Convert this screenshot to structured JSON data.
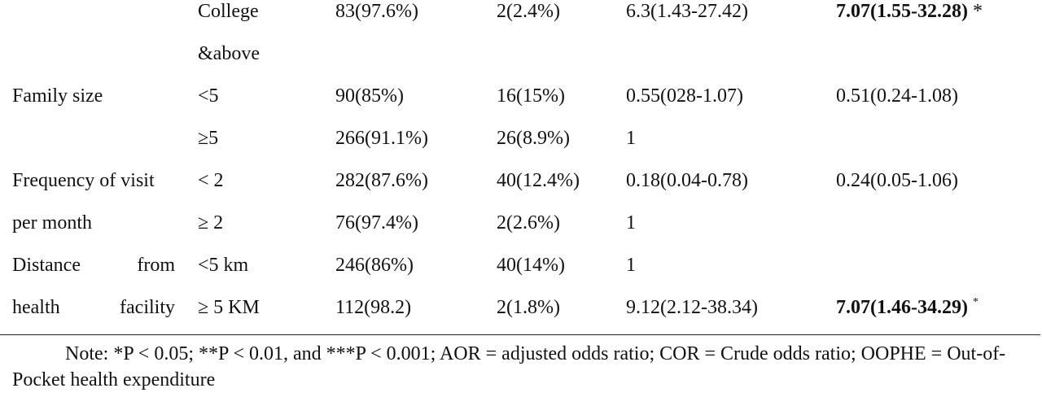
{
  "table": {
    "groups": [
      {
        "levels": [
          {
            "level": "College &above",
            "yes": "83(97.6%)",
            "no": "2(2.4%)",
            "cor": "6.3(1.43-27.42)",
            "aor": "7.07(1.55-32.28)",
            "aor_mark": "*",
            "aor_bold": true
          }
        ]
      },
      {
        "variable": "Family size",
        "levels": [
          {
            "level": "<5",
            "yes": "90(85%)",
            "no": "16(15%)",
            "cor": "0.55(028-1.07)",
            "aor": "0.51(0.24-1.08)"
          },
          {
            "level": "≥5",
            "yes": "266(91.1%)",
            "no": "26(8.9%)",
            "cor": "1"
          }
        ]
      },
      {
        "variable": "Frequency of visit per month",
        "levels": [
          {
            "level": "< 2",
            "yes": "282(87.6%)",
            "no": "40(12.4%)",
            "cor": "0.18(0.04-0.78)",
            "aor": "0.24(0.05-1.06)"
          },
          {
            "level": "≥ 2",
            "yes": "76(97.4%)",
            "no": "2(2.6%)",
            "cor": "1"
          }
        ]
      },
      {
        "variable": "Distance from health facility",
        "levels": [
          {
            "level": "<5 km",
            "yes": "246(86%)",
            "no": "40(14%)",
            "cor": "1"
          },
          {
            "level": "≥ 5 KM",
            "yes": "112(98.2)",
            "no": "2(1.8%)",
            "cor": "9.12(2.12-38.34)",
            "aor": "7.07(1.46-34.29)",
            "aor_mark": "*",
            "aor_bold": true,
            "aor_mark_sup": true
          }
        ]
      }
    ]
  },
  "note": "Note: *P < 0.05; **P < 0.01, and ***P < 0.001; AOR = adjusted odds ratio; COR = Crude odds ratio; OOPHE = Out-of-Pocket health expenditure"
}
